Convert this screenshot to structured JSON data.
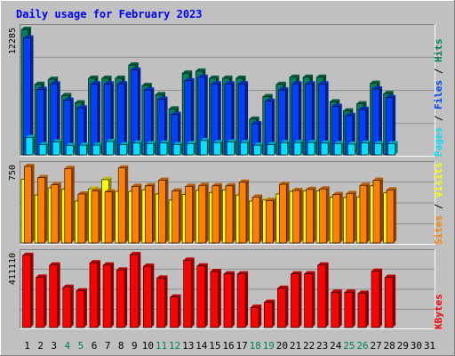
{
  "title": "Daily usage for February 2023",
  "colors": {
    "background": "#c0c0c0",
    "title": "#0000ff",
    "hits": "#00805c",
    "files": "#0040ff",
    "pages": "#00e0ff",
    "visits": "#ffff00",
    "sites": "#ff8000",
    "kbytes": "#ff0000",
    "weekend_day": "#00805c"
  },
  "chart_data": [
    {
      "type": "bar",
      "ymax_label": "12285",
      "right_labels": {
        "pages": "Pages",
        "files": "Files",
        "hits": "Hits",
        "sep": " / "
      },
      "categories": [
        "1",
        "2",
        "3",
        "4",
        "5",
        "6",
        "7",
        "8",
        "9",
        "10",
        "11",
        "12",
        "13",
        "14",
        "15",
        "16",
        "17",
        "18",
        "19",
        "20",
        "21",
        "22",
        "23",
        "24",
        "25",
        "26",
        "27",
        "28",
        "29",
        "30",
        "31"
      ],
      "weekend_days": [
        "4",
        "5",
        "11",
        "12",
        "18",
        "19",
        "25",
        "26"
      ],
      "ylim": [
        0,
        12285
      ],
      "series": [
        {
          "name": "Hits",
          "values": [
            12285,
            6900,
            7400,
            5800,
            5100,
            7500,
            7500,
            7500,
            8800,
            6800,
            5900,
            4500,
            8000,
            8200,
            7500,
            7500,
            7500,
            3500,
            5700,
            6900,
            7600,
            7600,
            7600,
            5200,
            4300,
            5000,
            7000,
            6000,
            null,
            null,
            null
          ]
        },
        {
          "name": "Files",
          "values": [
            11450,
            6400,
            6950,
            5350,
            4600,
            6950,
            6950,
            6950,
            8300,
            6350,
            5450,
            3950,
            7250,
            7600,
            6950,
            6950,
            6950,
            3050,
            5250,
            6350,
            6950,
            6950,
            6950,
            4750,
            3850,
            4450,
            6450,
            5600,
            null,
            null,
            null
          ]
        },
        {
          "name": "Pages",
          "values": [
            1700,
            1000,
            1250,
            900,
            950,
            950,
            1300,
            1000,
            1150,
            1100,
            1150,
            1000,
            1100,
            1400,
            1200,
            1250,
            1200,
            950,
            1000,
            1200,
            1200,
            1200,
            1150,
            1100,
            1050,
            1150,
            1100,
            1100,
            null,
            null,
            null
          ]
        }
      ]
    },
    {
      "type": "bar",
      "ymax_label": "750",
      "right_labels": {
        "sites": "Sites",
        "visits": "Visits",
        "sep": " / "
      },
      "categories": [
        "1",
        "2",
        "3",
        "4",
        "5",
        "6",
        "7",
        "8",
        "9",
        "10",
        "11",
        "12",
        "13",
        "14",
        "15",
        "16",
        "17",
        "18",
        "19",
        "20",
        "21",
        "22",
        "23",
        "24",
        "25",
        "26",
        "27",
        "28",
        "29",
        "30",
        "31"
      ],
      "ylim": [
        0,
        750
      ],
      "series": [
        {
          "name": "Visits",
          "values": [
            625,
            470,
            540,
            525,
            410,
            530,
            620,
            505,
            505,
            520,
            480,
            420,
            475,
            515,
            495,
            520,
            470,
            410,
            420,
            480,
            505,
            510,
            510,
            450,
            445,
            450,
            560,
            490,
            null,
            null,
            null
          ]
        },
        {
          "name": "Sites",
          "values": [
            750,
            640,
            570,
            730,
            480,
            510,
            500,
            735,
            555,
            560,
            615,
            510,
            555,
            565,
            560,
            560,
            595,
            450,
            415,
            575,
            515,
            525,
            530,
            475,
            485,
            565,
            615,
            520,
            null,
            null,
            null
          ]
        }
      ]
    },
    {
      "type": "bar",
      "ymax_label": "411110",
      "right_labels": {
        "kbytes": "KBytes"
      },
      "categories": [
        "1",
        "2",
        "3",
        "4",
        "5",
        "6",
        "7",
        "8",
        "9",
        "10",
        "11",
        "12",
        "13",
        "14",
        "15",
        "16",
        "17",
        "18",
        "19",
        "20",
        "21",
        "22",
        "23",
        "24",
        "25",
        "26",
        "27",
        "28",
        "29",
        "30",
        "31"
      ],
      "ylim": [
        0,
        411110
      ],
      "series": [
        {
          "name": "KBytes",
          "values": [
            407000,
            284000,
            352000,
            227000,
            207000,
            365000,
            352000,
            324000,
            411110,
            345000,
            279000,
            172000,
            379000,
            347000,
            316000,
            302000,
            302000,
            114000,
            142000,
            221000,
            302000,
            303000,
            352000,
            199000,
            199000,
            193000,
            317000,
            283000,
            null,
            null,
            null
          ]
        }
      ]
    }
  ]
}
